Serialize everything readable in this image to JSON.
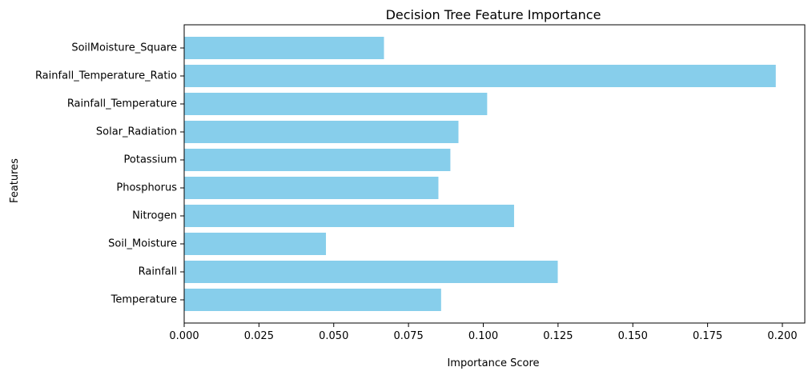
{
  "chart_data": {
    "type": "bar",
    "orientation": "horizontal",
    "title": "Decision Tree Feature Importance",
    "xlabel": "Importance Score",
    "ylabel": "Features",
    "categories": [
      "Temperature",
      "Rainfall",
      "Soil_Moisture",
      "Nitrogen",
      "Phosphorus",
      "Potassium",
      "Solar_Radiation",
      "Rainfall_Temperature",
      "Rainfall_Temperature_Ratio",
      "SoilMoisture_Square"
    ],
    "values": [
      0.0859,
      0.1249,
      0.0474,
      0.1103,
      0.085,
      0.089,
      0.0917,
      0.1013,
      0.1978,
      0.0668
    ],
    "xlim": [
      0,
      0.2075
    ],
    "xticks": [
      "0.000",
      "0.025",
      "0.050",
      "0.075",
      "0.100",
      "0.125",
      "0.150",
      "0.175",
      "0.200"
    ],
    "bar_color": "#87CEEB",
    "grid": false,
    "legend": "none"
  }
}
